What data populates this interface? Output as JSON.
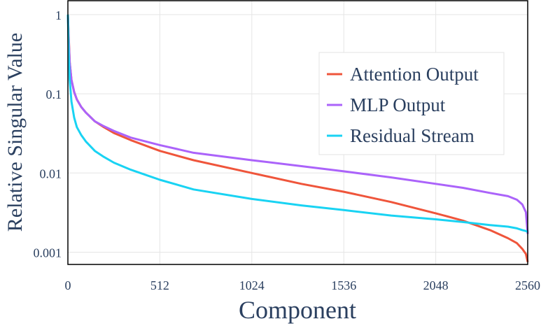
{
  "chart_data": {
    "type": "line",
    "xlabel": "Component",
    "ylabel": "Relative Singular Value",
    "x_scale": "linear",
    "y_scale": "log",
    "xlim": [
      0,
      2560
    ],
    "ylim": [
      0.0007,
      1.5
    ],
    "x_ticks": [
      {
        "value": 0,
        "label": "0"
      },
      {
        "value": 512,
        "label": "512"
      },
      {
        "value": 1024,
        "label": "1024"
      },
      {
        "value": 1536,
        "label": "1536"
      },
      {
        "value": 2048,
        "label": "2048"
      },
      {
        "value": 2560,
        "label": "2560"
      }
    ],
    "y_ticks": [
      {
        "value": 1,
        "label": "1"
      },
      {
        "value": 0.1,
        "label": "0.1"
      },
      {
        "value": 0.01,
        "label": "0.01"
      },
      {
        "value": 0.001,
        "label": "0.001"
      }
    ],
    "grid": true,
    "legend_position": "right",
    "series": [
      {
        "name": "Attention Output",
        "color": "#ef553b",
        "x": [
          0,
          5,
          10,
          20,
          35,
          50,
          75,
          100,
          150,
          200,
          256,
          350,
          512,
          700,
          1024,
          1300,
          1536,
          1800,
          2048,
          2200,
          2350,
          2450,
          2500,
          2530,
          2550,
          2560
        ],
        "y": [
          1.0,
          0.5,
          0.25,
          0.15,
          0.105,
          0.085,
          0.068,
          0.058,
          0.045,
          0.038,
          0.032,
          0.026,
          0.019,
          0.0145,
          0.01,
          0.0073,
          0.0058,
          0.0043,
          0.0031,
          0.0025,
          0.0019,
          0.0015,
          0.0013,
          0.0011,
          0.00095,
          0.00075
        ]
      },
      {
        "name": "MLP Output",
        "color": "#ab63fa",
        "x": [
          0,
          5,
          10,
          20,
          35,
          50,
          75,
          100,
          150,
          200,
          256,
          350,
          512,
          700,
          1024,
          1300,
          1536,
          1800,
          2048,
          2200,
          2350,
          2450,
          2500,
          2530,
          2550,
          2560
        ],
        "y": [
          1.0,
          0.45,
          0.25,
          0.15,
          0.105,
          0.085,
          0.068,
          0.058,
          0.045,
          0.039,
          0.034,
          0.028,
          0.0225,
          0.018,
          0.0145,
          0.0122,
          0.0105,
          0.0088,
          0.0073,
          0.0065,
          0.0056,
          0.0051,
          0.0046,
          0.004,
          0.0032,
          0.0017
        ]
      },
      {
        "name": "Residual Stream",
        "color": "#19d3f3",
        "x": [
          0,
          5,
          10,
          20,
          35,
          50,
          75,
          100,
          150,
          200,
          256,
          350,
          512,
          700,
          1024,
          1300,
          1536,
          1800,
          2048,
          2200,
          2350,
          2450,
          2500,
          2530,
          2550,
          2560
        ],
        "y": [
          1.0,
          0.3,
          0.15,
          0.08,
          0.05,
          0.038,
          0.03,
          0.025,
          0.019,
          0.016,
          0.0135,
          0.011,
          0.0082,
          0.0062,
          0.0047,
          0.0039,
          0.0034,
          0.0029,
          0.0026,
          0.0024,
          0.0022,
          0.0021,
          0.002,
          0.0019,
          0.00185,
          0.0018
        ]
      }
    ]
  }
}
